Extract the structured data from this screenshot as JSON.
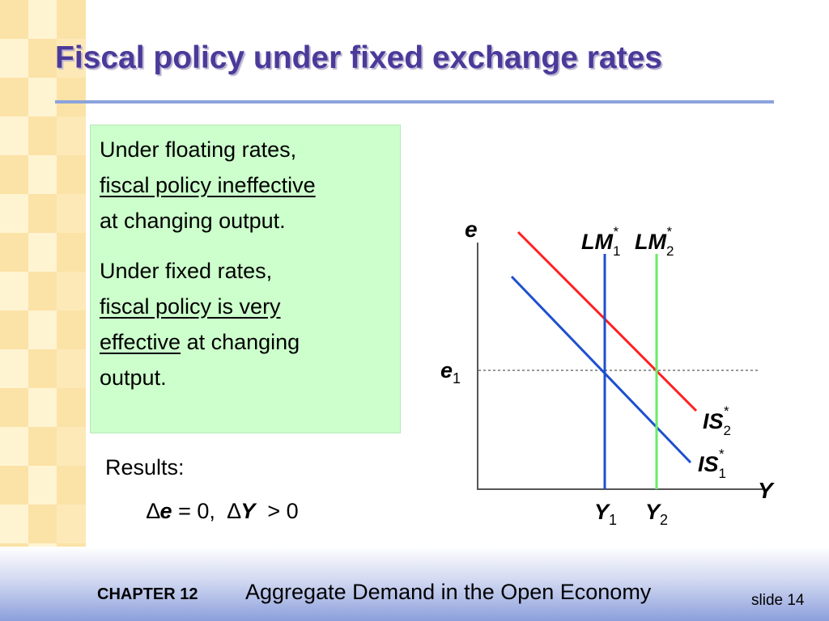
{
  "slide": {
    "title": "Fiscal policy under fixed exchange rates",
    "text_box": {
      "p1_line1": "Under floating rates,",
      "p1_line2_underlined": "fiscal policy ineffective",
      "p1_line3": "at changing output.",
      "p2_line1": "Under fixed rates,",
      "p2_line2_underlined": "fiscal policy is very",
      "p2_line3_underlined": "effective",
      "p2_line3_rest": " at changing",
      "p2_line4": "output."
    },
    "results": {
      "label": "Results:",
      "delta1": "∆",
      "var1": "e",
      "eq1": " = 0,  ",
      "delta2": "∆",
      "var2": "Y",
      "eq2": "  > 0"
    },
    "footer": {
      "chapter": "CHAPTER 12",
      "subtitle": "Aggregate Demand in the Open Economy",
      "slide_number": "slide 14"
    }
  },
  "diagram": {
    "y_axis_label": "e",
    "x_axis_label": "Y",
    "lm1": {
      "base": "LM",
      "sup": "*",
      "sub": "1",
      "color": "#1f4fcf"
    },
    "lm2": {
      "base": "LM",
      "sup": "*",
      "sub": "2",
      "color": "#66ee66"
    },
    "is1": {
      "base": "IS",
      "sup": "*",
      "sub": "1",
      "color": "#1f4fcf"
    },
    "is2": {
      "base": "IS",
      "sup": "*",
      "sub": "2",
      "color": "#ff2020"
    },
    "e1": {
      "base": "e",
      "sub": "1"
    },
    "y1": {
      "base": "Y",
      "sub": "1"
    },
    "y2": {
      "base": "Y",
      "sub": "2"
    }
  }
}
